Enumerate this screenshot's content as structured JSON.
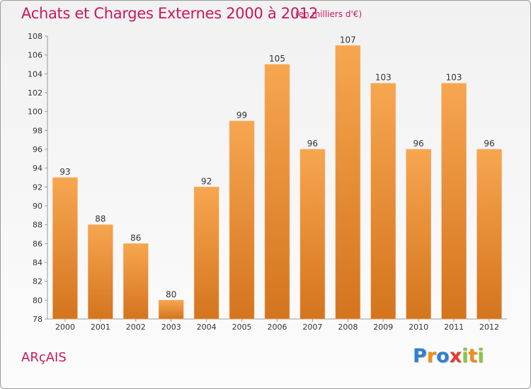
{
  "header": {
    "title": "Achats et Charges Externes 2000 à 2012",
    "subtitle": "(en milliers d'€)"
  },
  "footer": {
    "commune": "ARçAIS",
    "logo_letters": [
      {
        "char": "P",
        "color": "#2e7fd0"
      },
      {
        "char": "r",
        "color": "#f28c1a"
      },
      {
        "char": "o",
        "color": "#2e7fd0"
      },
      {
        "char": "x",
        "color": "#e63c2e"
      },
      {
        "char": "i",
        "color": "#8cc63f"
      },
      {
        "char": "t",
        "color": "#f28c1a"
      },
      {
        "char": "i",
        "color": "#8cc63f"
      }
    ]
  },
  "colors": {
    "bar_top": "#f7a650",
    "bar_bottom": "#d4741e",
    "accent": "#c8185c",
    "axis": "#999999"
  },
  "chart_data": {
    "type": "bar",
    "categories": [
      "2000",
      "2001",
      "2002",
      "2003",
      "2004",
      "2005",
      "2006",
      "2007",
      "2008",
      "2009",
      "2010",
      "2011",
      "2012"
    ],
    "values": [
      93,
      88,
      86,
      80,
      92,
      99,
      105,
      96,
      107,
      103,
      96,
      103,
      96
    ],
    "ylim": [
      78,
      108
    ],
    "yticks": [
      78,
      80,
      82,
      84,
      86,
      88,
      90,
      92,
      94,
      96,
      98,
      100,
      102,
      104,
      106,
      108
    ],
    "grid": false,
    "title": "Achats et Charges Externes 2000 à 2012",
    "xlabel": "",
    "ylabel": ""
  }
}
